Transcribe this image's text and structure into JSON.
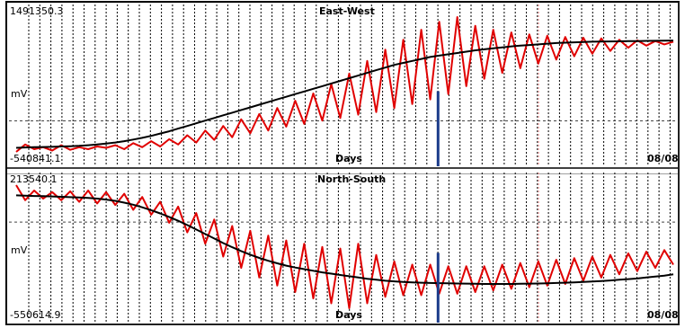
{
  "colors": {
    "signal": "#e00000",
    "trend": "#000000",
    "event": "#1a3b8a",
    "grid": "#000000",
    "marker": "#ff9999"
  },
  "chart_data": [
    {
      "type": "line",
      "title": "East-West",
      "ylabel": "mV",
      "xlabel": "Days",
      "ymax_label": "1491350.3",
      "ymin_label": "-540841.1",
      "date_label": "08/08",
      "grid": "vertical dotted",
      "series": [
        {
          "name": "",
          "color": "#e00000",
          "values": [
            -540841,
            -430000,
            -500000,
            -470000,
            -520000,
            -440000,
            -510000,
            -470000,
            -500000,
            -460000,
            -480000,
            -440000,
            -500000,
            -410000,
            -470000,
            -380000,
            -460000,
            -350000,
            -430000,
            -290000,
            -400000,
            -220000,
            -360000,
            -150000,
            -320000,
            -50000,
            -260000,
            30000,
            -220000,
            120000,
            -160000,
            230000,
            -120000,
            340000,
            -70000,
            480000,
            -30000,
            640000,
            20000,
            830000,
            60000,
            1000000,
            120000,
            1150000,
            180000,
            1300000,
            250000,
            1420000,
            330000,
            1491350,
            450000,
            1360000,
            560000,
            1300000,
            650000,
            1260000,
            720000,
            1230000,
            790000,
            1210000,
            850000,
            1190000,
            900000,
            1180000,
            940000,
            1170000,
            980000,
            1150000,
            1030000,
            1140000,
            1060000,
            1130000,
            1080000,
            1120000
          ]
        },
        {
          "name": "",
          "color": "#000000",
          "values": [
            -480000,
            -475000,
            -470000,
            -468000,
            -465000,
            -460000,
            -455000,
            -450000,
            -440000,
            -430000,
            -415000,
            -400000,
            -380000,
            -355000,
            -330000,
            -300000,
            -265000,
            -230000,
            -190000,
            -150000,
            -110000,
            -70000,
            -30000,
            10000,
            50000,
            90000,
            130000,
            170000,
            210000,
            250000,
            290000,
            330000,
            370000,
            410000,
            450000,
            490000,
            530000,
            570000,
            610000,
            650000,
            690000,
            730000,
            770000,
            800000,
            830000,
            860000,
            890000,
            910000,
            930000,
            950000,
            970000,
            990000,
            1005000,
            1020000,
            1035000,
            1050000,
            1060000,
            1070000,
            1080000,
            1090000,
            1100000,
            1105000,
            1110000,
            1115000,
            1120000,
            1122000,
            1124000,
            1126000,
            1128000,
            1130000,
            1132000,
            1134000,
            1136000,
            1138000
          ]
        }
      ],
      "event_marker": 0.642
    },
    {
      "type": "line",
      "title": "North-South",
      "ylabel": "mV",
      "xlabel": "Days",
      "ymax_label": "213540.1",
      "ymin_label": "-550614.9",
      "date_label": "08/08",
      "grid": "vertical dotted",
      "series": [
        {
          "name": "",
          "color": "#e00000",
          "values": [
            213540,
            120000,
            180000,
            130000,
            170000,
            120000,
            175000,
            110000,
            180000,
            100000,
            170000,
            90000,
            160000,
            60000,
            140000,
            30000,
            110000,
            -20000,
            80000,
            -80000,
            40000,
            -150000,
            0,
            -230000,
            -40000,
            -300000,
            -70000,
            -360000,
            -100000,
            -410000,
            -130000,
            -450000,
            -150000,
            -490000,
            -170000,
            -520000,
            -180000,
            -550614,
            -150000,
            -520000,
            -220000,
            -480000,
            -260000,
            -470000,
            -280000,
            -470000,
            -280000,
            -460000,
            -290000,
            -460000,
            -290000,
            -450000,
            -290000,
            -440000,
            -280000,
            -430000,
            -270000,
            -420000,
            -260000,
            -410000,
            -250000,
            -400000,
            -240000,
            -380000,
            -230000,
            -360000,
            -220000,
            -340000,
            -210000,
            -320000,
            -200000,
            -300000,
            -190000,
            -280000
          ]
        },
        {
          "name": "",
          "color": "#000000",
          "values": [
            150000,
            148000,
            146000,
            145000,
            143000,
            141000,
            139000,
            137000,
            134000,
            130000,
            124000,
            116000,
            105000,
            92000,
            76000,
            58000,
            38000,
            16000,
            -8000,
            -34000,
            -62000,
            -90000,
            -118000,
            -146000,
            -172000,
            -196000,
            -218000,
            -238000,
            -256000,
            -272000,
            -286000,
            -298000,
            -308000,
            -318000,
            -328000,
            -336000,
            -344000,
            -352000,
            -360000,
            -368000,
            -374000,
            -380000,
            -384000,
            -388000,
            -390000,
            -392000,
            -394000,
            -395000,
            -396000,
            -397000,
            -398000,
            -399000,
            -400000,
            -400000,
            -400000,
            -400000,
            -399000,
            -398000,
            -397000,
            -396000,
            -394000,
            -392000,
            -390000,
            -388000,
            -385000,
            -382000,
            -378000,
            -374000,
            -370000,
            -366000,
            -360000,
            -354000,
            -348000,
            -340000
          ]
        }
      ],
      "event_marker": 0.642
    }
  ]
}
